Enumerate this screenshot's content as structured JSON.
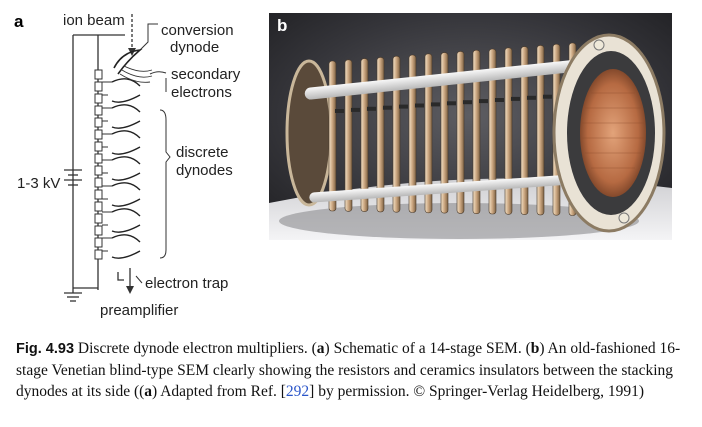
{
  "panel_a": {
    "letter": "a",
    "labels": {
      "ion_beam": "ion beam",
      "conversion_dynode_line1": "conversion",
      "conversion_dynode_line2": "dynode",
      "secondary_electrons_line1": "secondary",
      "secondary_electrons_line2": "electrons",
      "discrete_dynodes_line1": "discrete",
      "discrete_dynodes_line2": "dynodes",
      "voltage": "1-3 kV",
      "electron_trap": "electron trap",
      "preamplifier": "preamplifier"
    }
  },
  "panel_b": {
    "letter": "b",
    "photo_subject": "16-stage Venetian blind-type SEM photograph"
  },
  "caption": {
    "fig_label": "Fig. 4.93",
    "t1": " Discrete dynode electron multipliers. (",
    "a1": "a",
    "t2": ") Schematic of a 14-stage SEM. (",
    "b1": "b",
    "t3": ") An old-fashioned 16-stage Venetian blind-type SEM clearly showing the resistors and ceramics insulators between the stacking dynodes at its side ((",
    "a2": "a",
    "t4": ") Adapted from Ref. [",
    "ref": "292",
    "t5": "] by permission. © Springer-Verlag Heidelberg, 1991)"
  }
}
